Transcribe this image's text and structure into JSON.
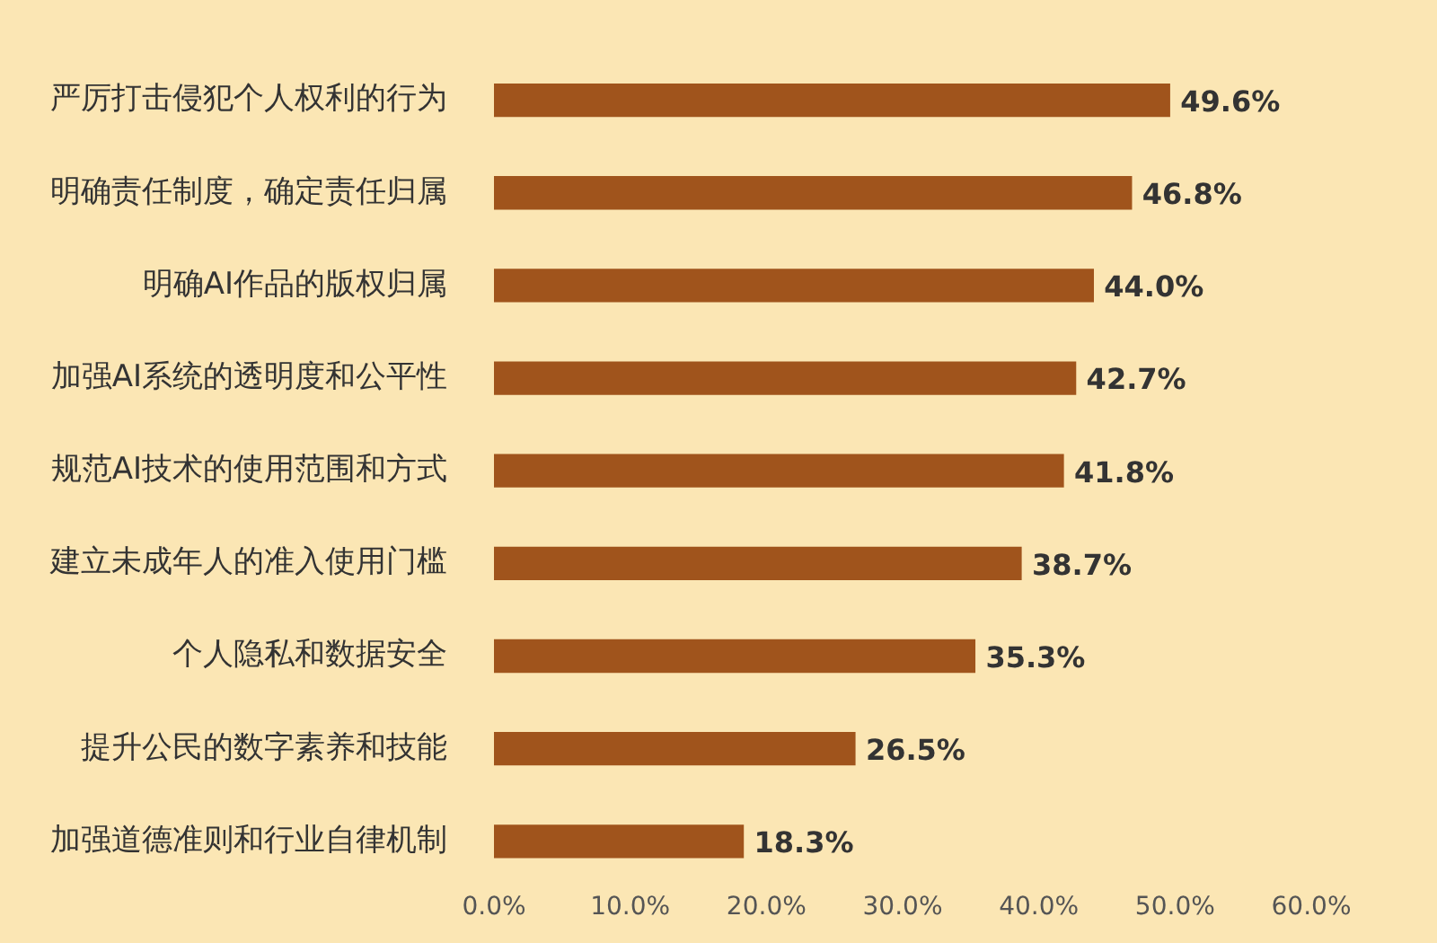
{
  "chart_data": {
    "type": "bar",
    "orientation": "horizontal",
    "categories": [
      "严厉打击侵犯个人权利的行为",
      "明确责任制度，确定责任归属",
      "明确AI作品的版权归属",
      "加强AI系统的透明度和公平性",
      "规范AI技术的使用范围和方式",
      "建立未成年人的准入使用门槛",
      "个人隐私和数据安全",
      "提升公民的数字素养和技能",
      "加强道德准则和行业自律机制"
    ],
    "values": [
      49.6,
      46.8,
      44.0,
      42.7,
      41.8,
      38.7,
      35.3,
      26.5,
      18.3
    ],
    "value_labels": [
      "49.6%",
      "46.8%",
      "44.0%",
      "42.7%",
      "41.8%",
      "38.7%",
      "35.3%",
      "26.5%",
      "18.3%"
    ],
    "color": "#a0541c",
    "xlim": [
      0,
      60
    ],
    "xticks": [
      {
        "value": 0,
        "label": "0.0%"
      },
      {
        "value": 10,
        "label": "10.0%"
      },
      {
        "value": 20,
        "label": "20.0%"
      },
      {
        "value": 30,
        "label": "30.0%"
      },
      {
        "value": 40,
        "label": "40.0%"
      },
      {
        "value": 50,
        "label": "50.0%"
      },
      {
        "value": 60,
        "label": "60.0%"
      }
    ],
    "legend": false
  }
}
